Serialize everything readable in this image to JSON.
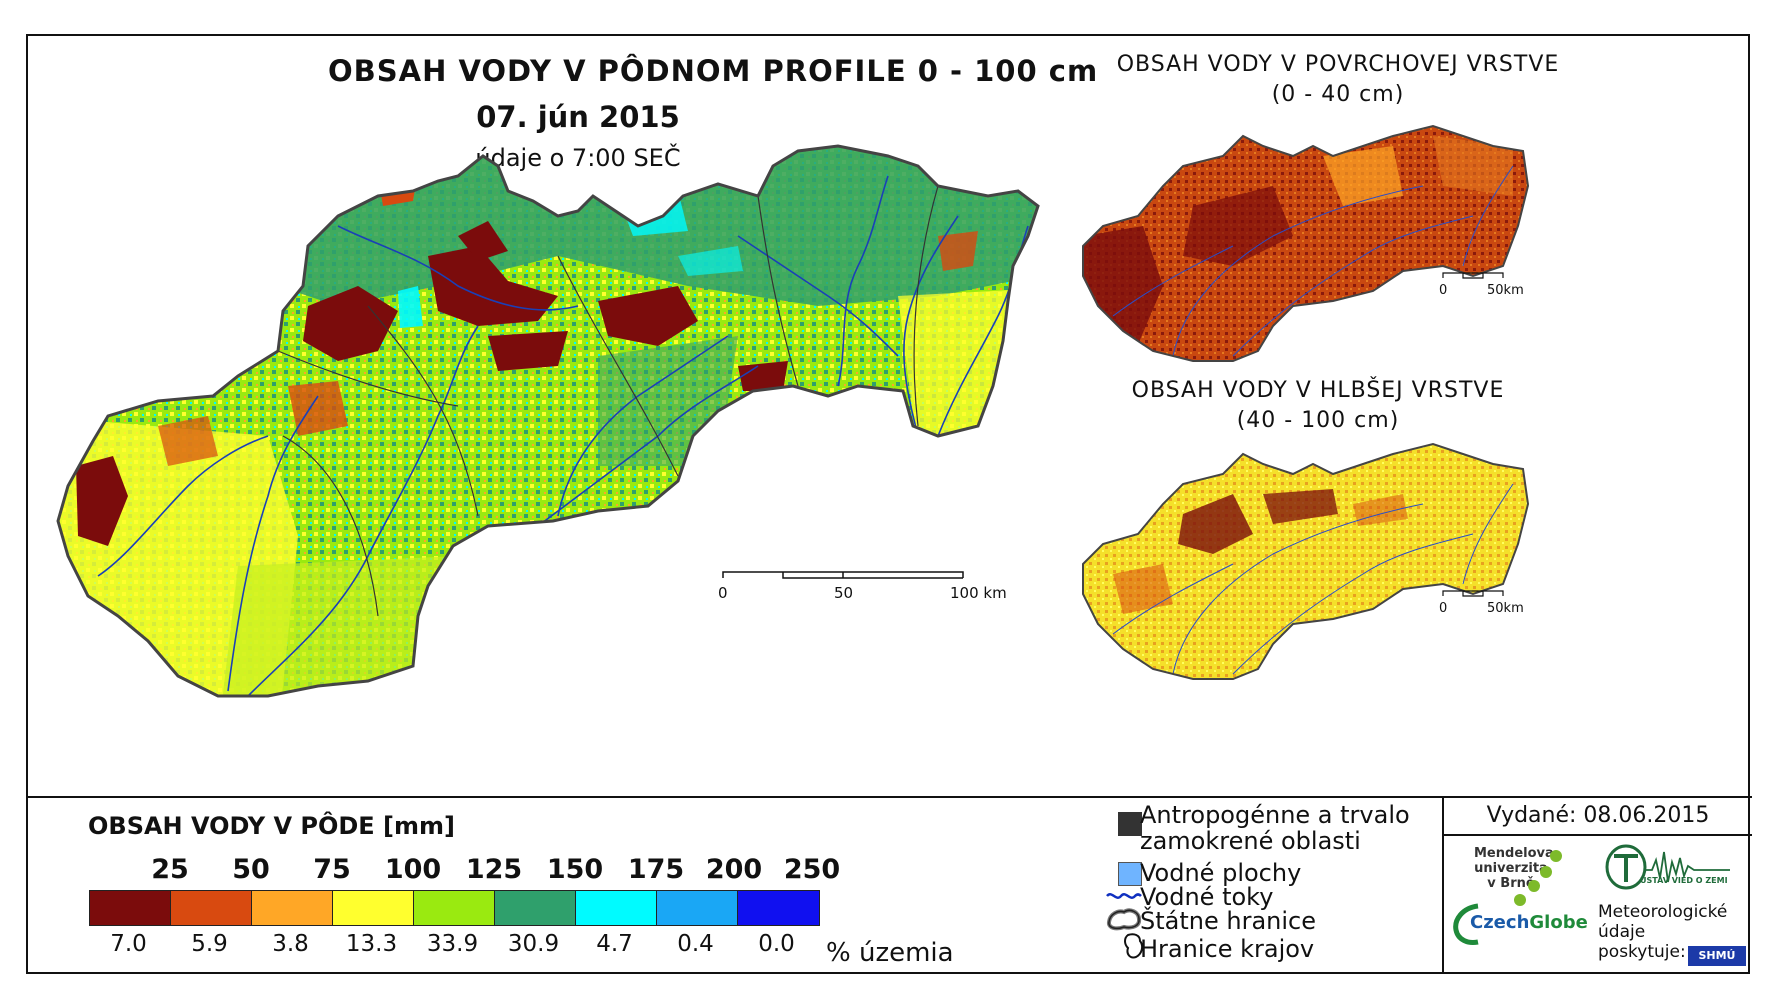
{
  "main": {
    "title": "OBSAH VODY V PÔDNOM PROFILE 0 - 100 cm",
    "date": "07. jún 2015",
    "time_note": "údaje o 7:00 SEČ",
    "scale": {
      "labels": [
        "0",
        "50",
        "100 km"
      ]
    }
  },
  "inset_top": {
    "title_line1": "OBSAH VODY V POVRCHOVEJ VRSTVE",
    "title_line2": "(0 - 40 cm)",
    "scale": {
      "labels": [
        "0",
        "50km"
      ]
    }
  },
  "inset_bottom": {
    "title_line1": "OBSAH VODY V HLBŠEJ VRSTVE",
    "title_line2": "(40 - 100 cm)",
    "scale": {
      "labels": [
        "0",
        "50km"
      ]
    }
  },
  "legend": {
    "title": "OBSAH VODY V PÔDE [mm]",
    "bin_labels": [
      "25",
      "50",
      "75",
      "100",
      "125",
      "150",
      "175",
      "200",
      "250"
    ],
    "colors": [
      "#7b0c0c",
      "#d84a10",
      "#ffa726",
      "#ffff2e",
      "#9aea10",
      "#2fa06c",
      "#00fbff",
      "#1aa7f5",
      "#1010f0"
    ],
    "percent_values": [
      "7.0",
      "5.9",
      "3.8",
      "13.3",
      "33.9",
      "30.9",
      "4.7",
      "0.4",
      "0.0"
    ],
    "percent_unit": "% územia"
  },
  "symbols": {
    "anthropogenic_line1": "Antropogénne a trvalo",
    "anthropogenic_line2": "zamokrené oblasti",
    "water_bodies": "Vodné plochy",
    "rivers": "Vodné toky",
    "state_border": "Štátne hranice",
    "region_border": "Hranice krajov",
    "anthropogenic_color": "#333333",
    "water_bodies_color": "#6fb4ff",
    "rivers_color": "#1030c0"
  },
  "info": {
    "issued": "Vydané: 08.06.2015",
    "mendel_line1": "Mendelova",
    "mendel_line2": "univerzita",
    "mendel_line3": "v Brně",
    "czechglobe_a": "Czech",
    "czechglobe_b": "Globe",
    "ustav": "ÚSTAV VIED O ZEMI",
    "meteo_line1": "Meteorologické",
    "meteo_line2": "údaje",
    "meteo_line3": "poskytuje:",
    "shmu": "SHMÚ"
  }
}
